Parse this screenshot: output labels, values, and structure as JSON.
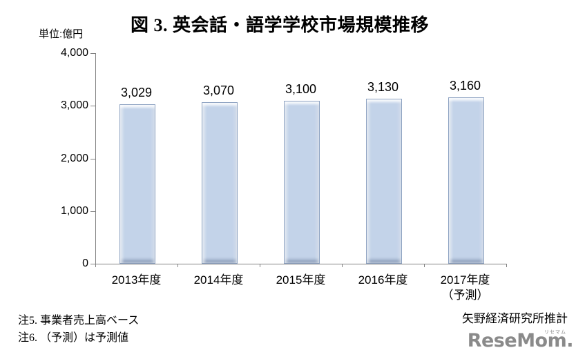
{
  "chart_data": {
    "type": "bar",
    "title": "図 3. 英会話・語学学校市場規模推移",
    "unit_label": "単位:億円",
    "categories": [
      "2013年度",
      "2014年度",
      "2015年度",
      "2016年度",
      "2017年度"
    ],
    "category_notes": [
      "",
      "",
      "",
      "",
      "（予測）"
    ],
    "values": [
      3029,
      3070,
      3100,
      3130,
      3160
    ],
    "value_labels": [
      "3,029",
      "3,070",
      "3,100",
      "3,130",
      "3,160"
    ],
    "xlabel": "",
    "ylabel": "",
    "ylim": [
      0,
      4000
    ],
    "ytick_values": [
      0,
      1000,
      2000,
      3000,
      4000
    ],
    "ytick_labels": [
      "0",
      "1,000",
      "2,000",
      "3,000",
      "4,000"
    ],
    "grid": false,
    "legend": "none",
    "bar_color": "#c3d3e9",
    "bar_border_color": "#8ea3c2",
    "axis_color": "#808080"
  },
  "notes": {
    "line1": "注5. 事業者売上高ベース",
    "line2": "注6. （予測）は予測値"
  },
  "source": "矢野経済研究所推計",
  "logo": {
    "text": "ReseMom.",
    "ruby": "リセマム",
    "color": "#8a8a8a"
  }
}
